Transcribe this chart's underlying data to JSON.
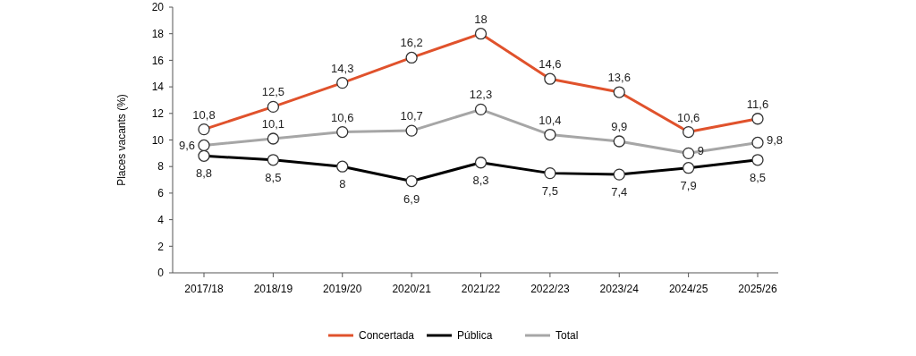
{
  "chart_data": {
    "type": "line",
    "ylabel": "Places vacants (%)",
    "categories": [
      "2017/18",
      "2018/19",
      "2019/20",
      "2020/21",
      "2021/22",
      "2022/23",
      "2023/24",
      "2024/25",
      "2025/26"
    ],
    "ylim": [
      0,
      20
    ],
    "yticks": [
      0,
      2,
      4,
      6,
      8,
      10,
      12,
      14,
      16,
      18,
      20
    ],
    "grid": false,
    "legend": "bottom",
    "marker": "circle",
    "line_style": "solid",
    "series": [
      {
        "name": "Concertada",
        "color": "#e0522c",
        "values": [
          10.8,
          12.5,
          14.3,
          16.2,
          18,
          14.6,
          13.6,
          10.6,
          11.6
        ],
        "value_labels": [
          "10,8",
          "12,5",
          "14,3",
          "16,2",
          "18",
          "14,6",
          "13,6",
          "10,6",
          "11,6"
        ]
      },
      {
        "name": "Pública",
        "color": "#000000",
        "values": [
          8.8,
          8.5,
          8,
          6.9,
          8.3,
          7.5,
          7.4,
          7.9,
          8.5
        ],
        "value_labels": [
          "8,8",
          "8,5",
          "8",
          "6,9",
          "8,3",
          "7,5",
          "7,4",
          "7,9",
          "8,5"
        ]
      },
      {
        "name": "Total",
        "color": "#a6a6a6",
        "values": [
          9.6,
          10.1,
          10.6,
          10.7,
          12.3,
          10.4,
          9.9,
          9,
          9.8
        ],
        "value_labels": [
          "9,6",
          "10,1",
          "10,6",
          "10,7",
          "12,3",
          "10,4",
          "9,9",
          "9",
          "9,8"
        ]
      }
    ]
  }
}
